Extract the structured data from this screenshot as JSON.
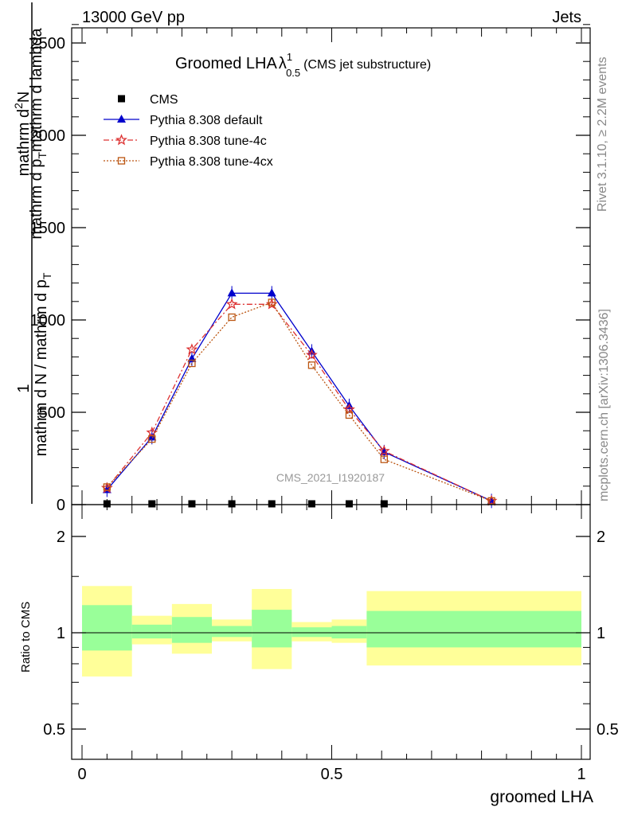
{
  "header": {
    "energy_label": "13000 GeV pp",
    "category_label": "Jets"
  },
  "title": {
    "main": "Groomed LHA",
    "symbol": "λ",
    "superscript": "1",
    "subscript": "0.5",
    "extra": "(CMS jet substructure)"
  },
  "side": {
    "rivet": "Rivet 3.1.10, ≥ 2.2M events",
    "mcplots": "mcplots.cern.ch [arXiv:1306.3436]"
  },
  "watermark": "CMS_2021_I1920187",
  "y_label": {
    "one": "1",
    "denominator": "mathrm d N / mathrm d p",
    "denominator_sub": "T",
    "numerator_line1": "mathrm d",
    "numerator_sup": "2",
    "numerator_line1b": "N",
    "numerator_line2": "mathrm d p",
    "numerator_line2_sub": "T",
    "numerator_line2b": "mathrm d lambda"
  },
  "x_label": "groomed LHA",
  "ratio_label": "Ratio to CMS",
  "chart_data": [
    {
      "type": "line",
      "xlim": [
        0,
        1
      ],
      "ylim": [
        0,
        2600
      ],
      "yticks": [
        0,
        500,
        1000,
        1500,
        2000,
        2500
      ],
      "ytick_labels": [
        "0",
        "500",
        "1000",
        "1500",
        "2000",
        "2500"
      ],
      "legend_position": "top-left",
      "series": [
        {
          "name": "CMS",
          "color": "#000000",
          "marker": "square",
          "x": [
            0.05,
            0.14,
            0.22,
            0.3,
            0.38,
            0.46,
            0.535,
            0.605
          ],
          "y": [
            0,
            0,
            0,
            0,
            0,
            0,
            0,
            0
          ]
        },
        {
          "name": "Pythia 8.308 default",
          "color": "#0000cc",
          "marker": "triangle",
          "dash": "",
          "x": [
            0.05,
            0.14,
            0.22,
            0.3,
            0.38,
            0.46,
            0.535,
            0.605,
            0.82
          ],
          "y": [
            80,
            365,
            790,
            1145,
            1145,
            830,
            535,
            285,
            20
          ]
        },
        {
          "name": "Pythia 8.308 tune-4c",
          "color": "#dd3333",
          "marker": "star",
          "dash": "7,3,2,3",
          "x": [
            0.05,
            0.14,
            0.22,
            0.3,
            0.38,
            0.46,
            0.535,
            0.605,
            0.82
          ],
          "y": [
            90,
            390,
            840,
            1085,
            1085,
            810,
            515,
            290,
            20
          ]
        },
        {
          "name": "Pythia 8.308 tune-4cx",
          "color": "#bb5511",
          "marker": "open-square",
          "dash": "2,2",
          "x": [
            0.05,
            0.14,
            0.22,
            0.3,
            0.38,
            0.46,
            0.535,
            0.605,
            0.82
          ],
          "y": [
            95,
            355,
            765,
            1015,
            1095,
            755,
            485,
            245,
            20
          ]
        }
      ]
    },
    {
      "type": "area",
      "ylim": [
        0.4,
        2.3
      ],
      "yticks": [
        0.5,
        1,
        2
      ],
      "ytick_labels": [
        "0.5",
        "1",
        "2"
      ],
      "xticks": [
        0,
        0.5,
        1
      ],
      "xtick_labels": [
        "0",
        "0.5",
        "1"
      ],
      "reference_line": 1,
      "bins": [
        {
          "x0": 0.0,
          "x1": 0.1,
          "green": [
            0.88,
            1.22
          ],
          "yellow": [
            0.73,
            1.4
          ]
        },
        {
          "x0": 0.1,
          "x1": 0.18,
          "green": [
            0.96,
            1.06
          ],
          "yellow": [
            0.92,
            1.13
          ]
        },
        {
          "x0": 0.18,
          "x1": 0.26,
          "green": [
            0.93,
            1.12
          ],
          "yellow": [
            0.86,
            1.23
          ]
        },
        {
          "x0": 0.26,
          "x1": 0.34,
          "green": [
            0.97,
            1.05
          ],
          "yellow": [
            0.94,
            1.1
          ]
        },
        {
          "x0": 0.34,
          "x1": 0.42,
          "green": [
            0.9,
            1.18
          ],
          "yellow": [
            0.77,
            1.37
          ]
        },
        {
          "x0": 0.42,
          "x1": 0.5,
          "green": [
            0.97,
            1.04
          ],
          "yellow": [
            0.94,
            1.08
          ]
        },
        {
          "x0": 0.5,
          "x1": 0.57,
          "green": [
            0.96,
            1.05
          ],
          "yellow": [
            0.93,
            1.1
          ]
        },
        {
          "x0": 0.57,
          "x1": 1.0,
          "green": [
            0.9,
            1.17
          ],
          "yellow": [
            0.79,
            1.35
          ]
        }
      ],
      "green_color": "#99ff99",
      "yellow_color": "#ffff99"
    }
  ]
}
